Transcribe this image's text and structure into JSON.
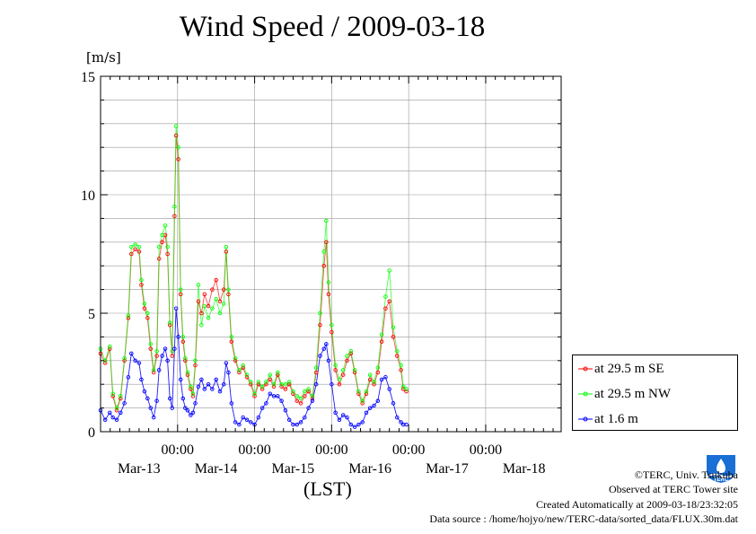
{
  "header": {
    "title": "Wind Speed / 2009-03-18",
    "unit": "[m/s]"
  },
  "axis": {
    "xlabel": "(LST)"
  },
  "legend": {
    "items": [
      {
        "label": "at 29.5 m SE",
        "color": "#ff0000"
      },
      {
        "label": "at 29.5 m NW",
        "color": "#00ff00"
      },
      {
        "label": "at 1.6 m",
        "color": "#0000ff"
      }
    ]
  },
  "footer": {
    "copyright": "©TERC, Univ. Tsukuba",
    "observed": "Observed at TERC Tower site",
    "created": "Created Automatically at 2009-03-18/23:32:05",
    "source": "Data source : /home/hojyo/new/TERC-data/sorted_data/FLUX.30m.dat"
  },
  "logo": {
    "text": "TERC"
  },
  "chart_data": {
    "type": "line",
    "title": "Wind Speed / 2009-03-18",
    "ylabel": "[m/s]",
    "xlabel": "(LST)",
    "ylim": [
      0,
      15
    ],
    "yticks": [
      0,
      5,
      10,
      15
    ],
    "xlim": [
      -1,
      4.98
    ],
    "grid": true,
    "legend_position": "right",
    "x_units": "days relative to Mar-13 00:00 LST",
    "xticks": [
      {
        "x": 0,
        "top": "00:00",
        "bottom": "Mar-13"
      },
      {
        "x": 1,
        "top": "00:00",
        "bottom": "Mar-14"
      },
      {
        "x": 2,
        "top": "00:00",
        "bottom": "Mar-15"
      },
      {
        "x": 3,
        "top": "00:00",
        "bottom": "Mar-16"
      },
      {
        "x": 4,
        "top": "00:00",
        "bottom": "Mar-17"
      },
      {
        "x": 5,
        "top": "",
        "bottom": "Mar-18"
      }
    ],
    "series": [
      {
        "name": "at 29.5 m SE",
        "color": "#ff0000",
        "points": [
          [
            -1,
            3.3
          ],
          [
            -0.94,
            2.9
          ],
          [
            -0.88,
            3.5
          ],
          [
            -0.84,
            1.5
          ],
          [
            -0.79,
            0.9
          ],
          [
            -0.74,
            1.4
          ],
          [
            -0.69,
            3.0
          ],
          [
            -0.64,
            4.8
          ],
          [
            -0.6,
            7.5
          ],
          [
            -0.55,
            7.7
          ],
          [
            -0.5,
            7.6
          ],
          [
            -0.47,
            6.2
          ],
          [
            -0.43,
            5.2
          ],
          [
            -0.39,
            4.8
          ],
          [
            -0.35,
            3.5
          ],
          [
            -0.31,
            2.5
          ],
          [
            -0.27,
            3.2
          ],
          [
            -0.24,
            7.3
          ],
          [
            -0.2,
            8.0
          ],
          [
            -0.16,
            8.3
          ],
          [
            -0.13,
            7.5
          ],
          [
            -0.1,
            4.5
          ],
          [
            -0.07,
            3.2
          ],
          [
            -0.04,
            9.1
          ],
          [
            -0.02,
            12.5
          ],
          [
            0.01,
            11.5
          ],
          [
            0.04,
            5.8
          ],
          [
            0.07,
            3.8
          ],
          [
            0.1,
            3.0
          ],
          [
            0.13,
            2.4
          ],
          [
            0.17,
            1.8
          ],
          [
            0.2,
            1.5
          ],
          [
            0.23,
            2.8
          ],
          [
            0.27,
            5.5
          ],
          [
            0.31,
            5.0
          ],
          [
            0.35,
            5.8
          ],
          [
            0.4,
            5.3
          ],
          [
            0.45,
            6.0
          ],
          [
            0.5,
            6.4
          ],
          [
            0.55,
            5.5
          ],
          [
            0.6,
            6.0
          ],
          [
            0.63,
            7.6
          ],
          [
            0.66,
            5.8
          ],
          [
            0.7,
            3.8
          ],
          [
            0.75,
            3.0
          ],
          [
            0.8,
            2.5
          ],
          [
            0.85,
            2.7
          ],
          [
            0.9,
            2.3
          ],
          [
            0.95,
            2.0
          ],
          [
            1.0,
            1.5
          ],
          [
            1.05,
            2.0
          ],
          [
            1.1,
            1.8
          ],
          [
            1.15,
            2.0
          ],
          [
            1.2,
            2.2
          ],
          [
            1.25,
            1.9
          ],
          [
            1.3,
            2.4
          ],
          [
            1.35,
            1.9
          ],
          [
            1.4,
            1.8
          ],
          [
            1.45,
            2.0
          ],
          [
            1.5,
            1.6
          ],
          [
            1.55,
            1.3
          ],
          [
            1.6,
            1.2
          ],
          [
            1.65,
            1.5
          ],
          [
            1.7,
            1.7
          ],
          [
            1.75,
            1.4
          ],
          [
            1.8,
            2.5
          ],
          [
            1.85,
            4.5
          ],
          [
            1.9,
            7.0
          ],
          [
            1.93,
            8.0
          ],
          [
            1.96,
            5.8
          ],
          [
            2.0,
            4.2
          ],
          [
            2.05,
            2.6
          ],
          [
            2.1,
            2.0
          ],
          [
            2.15,
            2.4
          ],
          [
            2.2,
            3.0
          ],
          [
            2.25,
            3.3
          ],
          [
            2.3,
            2.5
          ],
          [
            2.35,
            1.6
          ],
          [
            2.4,
            1.2
          ],
          [
            2.45,
            1.6
          ],
          [
            2.5,
            2.2
          ],
          [
            2.55,
            2.0
          ],
          [
            2.6,
            2.5
          ],
          [
            2.65,
            3.8
          ],
          [
            2.7,
            5.2
          ],
          [
            2.75,
            5.5
          ],
          [
            2.8,
            4.0
          ],
          [
            2.85,
            3.2
          ],
          [
            2.9,
            2.6
          ],
          [
            2.93,
            1.8
          ],
          [
            2.97,
            1.7
          ]
        ]
      },
      {
        "name": "at 29.5 m NW",
        "color": "#00ff00",
        "points": [
          [
            -1,
            3.5
          ],
          [
            -0.94,
            3.0
          ],
          [
            -0.88,
            3.6
          ],
          [
            -0.84,
            1.6
          ],
          [
            -0.79,
            1.0
          ],
          [
            -0.74,
            1.5
          ],
          [
            -0.69,
            3.1
          ],
          [
            -0.64,
            4.9
          ],
          [
            -0.6,
            7.8
          ],
          [
            -0.55,
            7.9
          ],
          [
            -0.5,
            7.8
          ],
          [
            -0.47,
            6.4
          ],
          [
            -0.43,
            5.4
          ],
          [
            -0.39,
            5.0
          ],
          [
            -0.35,
            3.7
          ],
          [
            -0.31,
            2.6
          ],
          [
            -0.27,
            3.4
          ],
          [
            -0.24,
            7.8
          ],
          [
            -0.2,
            8.3
          ],
          [
            -0.16,
            8.7
          ],
          [
            -0.13,
            7.8
          ],
          [
            -0.1,
            4.6
          ],
          [
            -0.07,
            3.4
          ],
          [
            -0.04,
            9.5
          ],
          [
            -0.02,
            12.9
          ],
          [
            0.01,
            12.0
          ],
          [
            0.04,
            6.0
          ],
          [
            0.07,
            4.0
          ],
          [
            0.1,
            3.1
          ],
          [
            0.13,
            2.5
          ],
          [
            0.17,
            1.9
          ],
          [
            0.2,
            1.6
          ],
          [
            0.23,
            3.0
          ],
          [
            0.27,
            6.2
          ],
          [
            0.31,
            4.5
          ],
          [
            0.35,
            5.3
          ],
          [
            0.4,
            4.8
          ],
          [
            0.45,
            5.2
          ],
          [
            0.5,
            5.6
          ],
          [
            0.55,
            5.0
          ],
          [
            0.6,
            5.4
          ],
          [
            0.63,
            7.8
          ],
          [
            0.66,
            6.0
          ],
          [
            0.7,
            4.0
          ],
          [
            0.75,
            3.1
          ],
          [
            0.8,
            2.6
          ],
          [
            0.85,
            2.8
          ],
          [
            0.9,
            2.4
          ],
          [
            0.95,
            2.1
          ],
          [
            1.0,
            1.6
          ],
          [
            1.05,
            2.1
          ],
          [
            1.1,
            1.9
          ],
          [
            1.15,
            2.1
          ],
          [
            1.2,
            2.4
          ],
          [
            1.25,
            2.0
          ],
          [
            1.3,
            2.5
          ],
          [
            1.35,
            2.0
          ],
          [
            1.4,
            2.0
          ],
          [
            1.45,
            2.1
          ],
          [
            1.5,
            1.7
          ],
          [
            1.55,
            1.5
          ],
          [
            1.6,
            1.4
          ],
          [
            1.65,
            1.7
          ],
          [
            1.7,
            1.8
          ],
          [
            1.75,
            1.5
          ],
          [
            1.8,
            2.7
          ],
          [
            1.85,
            5.0
          ],
          [
            1.9,
            7.6
          ],
          [
            1.93,
            8.9
          ],
          [
            1.96,
            6.3
          ],
          [
            2.0,
            4.5
          ],
          [
            2.05,
            2.8
          ],
          [
            2.1,
            2.2
          ],
          [
            2.15,
            2.6
          ],
          [
            2.2,
            3.2
          ],
          [
            2.25,
            3.4
          ],
          [
            2.3,
            2.6
          ],
          [
            2.35,
            1.7
          ],
          [
            2.4,
            1.3
          ],
          [
            2.45,
            1.7
          ],
          [
            2.5,
            2.4
          ],
          [
            2.55,
            2.1
          ],
          [
            2.6,
            2.7
          ],
          [
            2.65,
            4.1
          ],
          [
            2.7,
            5.7
          ],
          [
            2.75,
            6.8
          ],
          [
            2.8,
            4.4
          ],
          [
            2.85,
            3.4
          ],
          [
            2.9,
            2.8
          ],
          [
            2.93,
            1.9
          ],
          [
            2.97,
            1.8
          ]
        ]
      },
      {
        "name": "at 1.6 m",
        "color": "#0000ff",
        "points": [
          [
            -1,
            0.9
          ],
          [
            -0.94,
            0.5
          ],
          [
            -0.88,
            0.8
          ],
          [
            -0.84,
            0.6
          ],
          [
            -0.79,
            0.5
          ],
          [
            -0.74,
            0.8
          ],
          [
            -0.69,
            1.2
          ],
          [
            -0.64,
            2.3
          ],
          [
            -0.6,
            3.3
          ],
          [
            -0.55,
            3.0
          ],
          [
            -0.5,
            2.9
          ],
          [
            -0.47,
            2.2
          ],
          [
            -0.43,
            1.7
          ],
          [
            -0.39,
            1.4
          ],
          [
            -0.35,
            1.0
          ],
          [
            -0.31,
            0.6
          ],
          [
            -0.27,
            1.3
          ],
          [
            -0.24,
            2.6
          ],
          [
            -0.2,
            3.2
          ],
          [
            -0.16,
            3.5
          ],
          [
            -0.13,
            3.0
          ],
          [
            -0.1,
            1.4
          ],
          [
            -0.07,
            1.0
          ],
          [
            -0.04,
            3.5
          ],
          [
            -0.02,
            5.2
          ],
          [
            0.01,
            4.0
          ],
          [
            0.04,
            2.2
          ],
          [
            0.07,
            1.4
          ],
          [
            0.1,
            1.0
          ],
          [
            0.13,
            0.9
          ],
          [
            0.17,
            0.7
          ],
          [
            0.2,
            0.8
          ],
          [
            0.23,
            1.2
          ],
          [
            0.27,
            1.9
          ],
          [
            0.31,
            2.2
          ],
          [
            0.35,
            1.8
          ],
          [
            0.4,
            2.0
          ],
          [
            0.45,
            1.8
          ],
          [
            0.5,
            2.2
          ],
          [
            0.55,
            1.7
          ],
          [
            0.6,
            2.0
          ],
          [
            0.63,
            2.9
          ],
          [
            0.66,
            2.5
          ],
          [
            0.7,
            1.2
          ],
          [
            0.75,
            0.4
          ],
          [
            0.8,
            0.3
          ],
          [
            0.85,
            0.6
          ],
          [
            0.9,
            0.5
          ],
          [
            0.95,
            0.4
          ],
          [
            1.0,
            0.3
          ],
          [
            1.05,
            0.6
          ],
          [
            1.1,
            1.0
          ],
          [
            1.15,
            1.2
          ],
          [
            1.2,
            1.6
          ],
          [
            1.25,
            1.5
          ],
          [
            1.3,
            1.5
          ],
          [
            1.35,
            1.3
          ],
          [
            1.4,
            0.9
          ],
          [
            1.45,
            0.5
          ],
          [
            1.5,
            0.3
          ],
          [
            1.55,
            0.3
          ],
          [
            1.6,
            0.4
          ],
          [
            1.65,
            0.6
          ],
          [
            1.7,
            1.0
          ],
          [
            1.75,
            1.3
          ],
          [
            1.8,
            2.0
          ],
          [
            1.85,
            3.2
          ],
          [
            1.9,
            3.5
          ],
          [
            1.93,
            3.7
          ],
          [
            1.96,
            3.0
          ],
          [
            2.0,
            2.0
          ],
          [
            2.05,
            0.8
          ],
          [
            2.1,
            0.5
          ],
          [
            2.15,
            0.7
          ],
          [
            2.2,
            0.6
          ],
          [
            2.25,
            0.3
          ],
          [
            2.3,
            0.2
          ],
          [
            2.35,
            0.3
          ],
          [
            2.4,
            0.4
          ],
          [
            2.45,
            0.8
          ],
          [
            2.5,
            1.0
          ],
          [
            2.55,
            1.1
          ],
          [
            2.6,
            1.3
          ],
          [
            2.65,
            2.2
          ],
          [
            2.7,
            2.3
          ],
          [
            2.75,
            1.8
          ],
          [
            2.8,
            1.2
          ],
          [
            2.85,
            0.6
          ],
          [
            2.9,
            0.4
          ],
          [
            2.93,
            0.3
          ],
          [
            2.97,
            0.3
          ]
        ]
      }
    ]
  }
}
